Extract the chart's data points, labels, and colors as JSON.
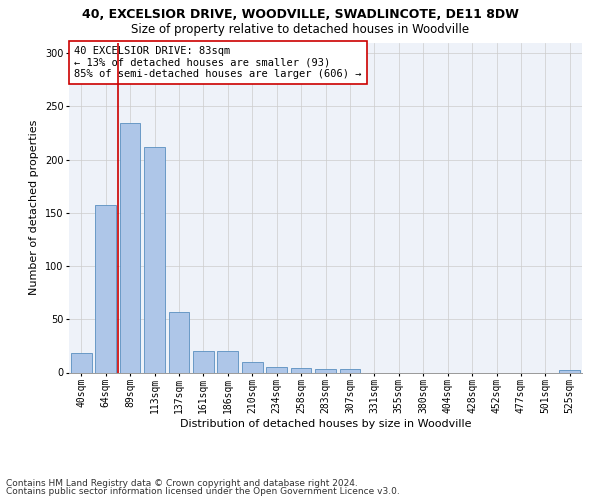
{
  "title": "40, EXCELSIOR DRIVE, WOODVILLE, SWADLINCOTE, DE11 8DW",
  "subtitle": "Size of property relative to detached houses in Woodville",
  "xlabel": "Distribution of detached houses by size in Woodville",
  "ylabel": "Number of detached properties",
  "bin_labels": [
    "40sqm",
    "64sqm",
    "89sqm",
    "113sqm",
    "137sqm",
    "161sqm",
    "186sqm",
    "210sqm",
    "234sqm",
    "258sqm",
    "283sqm",
    "307sqm",
    "331sqm",
    "355sqm",
    "380sqm",
    "404sqm",
    "428sqm",
    "452sqm",
    "477sqm",
    "501sqm",
    "525sqm"
  ],
  "bar_values": [
    18,
    157,
    234,
    212,
    57,
    20,
    20,
    10,
    5,
    4,
    3,
    3,
    0,
    0,
    0,
    0,
    0,
    0,
    0,
    0,
    2
  ],
  "bar_color": "#aec6e8",
  "bar_edge_color": "#5a8fc0",
  "vline_color": "#cc0000",
  "annotation_text": "40 EXCELSIOR DRIVE: 83sqm\n← 13% of detached houses are smaller (93)\n85% of semi-detached houses are larger (606) →",
  "annotation_box_color": "#ffffff",
  "annotation_box_edge": "#cc0000",
  "ylim": [
    0,
    310
  ],
  "yticks": [
    0,
    50,
    100,
    150,
    200,
    250,
    300
  ],
  "grid_color": "#cccccc",
  "background_color": "#eef2f9",
  "footer1": "Contains HM Land Registry data © Crown copyright and database right 2024.",
  "footer2": "Contains public sector information licensed under the Open Government Licence v3.0.",
  "title_fontsize": 9,
  "subtitle_fontsize": 8.5,
  "xlabel_fontsize": 8,
  "ylabel_fontsize": 8,
  "tick_fontsize": 7,
  "annotation_fontsize": 7.5,
  "footer_fontsize": 6.5
}
